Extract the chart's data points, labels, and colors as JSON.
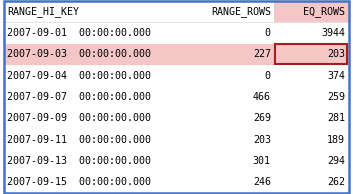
{
  "headers": [
    "RANGE_HI_KEY",
    "RANGE_ROWS",
    "EQ_ROWS"
  ],
  "rows": [
    [
      "2007-09-01  00:00:00.000",
      "0",
      "3944"
    ],
    [
      "2007-09-03  00:00:00.000",
      "227",
      "203"
    ],
    [
      "2007-09-04  00:00:00.000",
      "0",
      "374"
    ],
    [
      "2007-09-07  00:00:00.000",
      "466",
      "259"
    ],
    [
      "2007-09-09  00:00:00.000",
      "269",
      "281"
    ],
    [
      "2007-09-11  00:00:00.000",
      "203",
      "189"
    ],
    [
      "2007-09-13  00:00:00.000",
      "301",
      "294"
    ],
    [
      "2007-09-15  00:00:00.000",
      "246",
      "262"
    ]
  ],
  "highlighted_row": 1,
  "highlight_row_color": "#f5c6c6",
  "highlight_cell_color": "#f5c6c6",
  "eq_rows_header_color": "#f5c6c6",
  "highlight_cell_border_color": "#a02020",
  "header_bg": "#ffffff",
  "row_bg_normal": "#ffffff",
  "outer_border_color": "#4472c4",
  "text_color": "#000000",
  "font_size": 7.2,
  "figsize": [
    3.53,
    1.94
  ],
  "dpi": 100
}
